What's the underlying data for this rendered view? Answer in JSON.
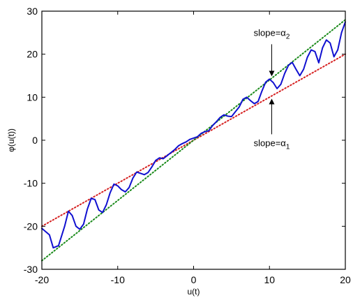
{
  "chart_data": {
    "type": "line",
    "title": "",
    "xlabel": "u(t)",
    "ylabel": "φ(u(t))",
    "xlim": [
      -20,
      20
    ],
    "ylim": [
      -30,
      30
    ],
    "xticks": [
      -20,
      -10,
      0,
      10,
      20
    ],
    "yticks": [
      -30,
      -20,
      -10,
      0,
      10,
      20,
      30
    ],
    "x_tick_labels": [
      "-20",
      "-10",
      "0",
      "10",
      "20"
    ],
    "y_tick_labels": [
      "-30",
      "-20",
      "-10",
      "0",
      "10",
      "20",
      "30"
    ],
    "grid": false,
    "legend": "none",
    "series": [
      {
        "style": "dotted",
        "color": "#d62020",
        "x": [
          -20,
          20
        ],
        "y": [
          -20,
          20
        ]
      },
      {
        "style": "dotted",
        "color": "#1a8a1a",
        "x": [
          -20,
          20
        ],
        "y": [
          -28,
          28
        ]
      },
      {
        "style": "solid",
        "color": "#1010d0",
        "x": [
          -20,
          -19,
          -18.5,
          -17.8,
          -17,
          -16.5,
          -16,
          -15.5,
          -15,
          -14.5,
          -14,
          -13.5,
          -13,
          -12.5,
          -12,
          -11.5,
          -11,
          -10.5,
          -10,
          -9.5,
          -9,
          -8.5,
          -8,
          -7.5,
          -7,
          -6.5,
          -6,
          -5.5,
          -5,
          -4.5,
          -4,
          -3.5,
          -3,
          -2.5,
          -2,
          -1.5,
          -1,
          -0.5,
          0,
          0.5,
          1,
          1.5,
          2,
          2.5,
          3,
          3.5,
          4,
          4.5,
          5,
          5.5,
          6,
          6.5,
          7,
          7.5,
          8,
          8.5,
          9,
          9.5,
          10,
          10.5,
          11,
          11.5,
          12,
          12.5,
          13,
          13.5,
          14,
          14.5,
          15,
          15.5,
          16,
          16.5,
          17,
          17.5,
          18,
          18.5,
          19,
          19.5,
          20
        ],
        "y": [
          -20.5,
          -22,
          -25,
          -24.5,
          -20,
          -16.5,
          -17.5,
          -20,
          -20.7,
          -19.5,
          -16,
          -13.5,
          -13.8,
          -16.2,
          -16.8,
          -15,
          -12.2,
          -10.2,
          -10.6,
          -11.5,
          -12,
          -11,
          -8.8,
          -7.4,
          -7.7,
          -8,
          -7.5,
          -6.2,
          -4.7,
          -4.1,
          -4.3,
          -3.6,
          -2.9,
          -2.2,
          -1.3,
          -0.8,
          -0.4,
          0.2,
          0.5,
          0.8,
          1.6,
          2,
          2.2,
          3.4,
          4.3,
          5.3,
          5.9,
          5.6,
          5.5,
          6.6,
          7.7,
          9.5,
          10,
          9.2,
          8.5,
          9,
          11.4,
          13.5,
          14.2,
          13.4,
          12,
          13,
          15.5,
          17.4,
          18.1,
          16.5,
          15,
          16.5,
          19.3,
          21,
          20.6,
          18,
          21.5,
          23.3,
          22.6,
          19.4,
          21,
          25,
          27.5
        ]
      }
    ],
    "annotations": [
      {
        "text": "slope=α",
        "subscript": "2",
        "x": 10.3,
        "y": 14.2
      },
      {
        "text": "slope=α",
        "subscript": "1",
        "x": 10.3,
        "y": 10.3
      }
    ]
  }
}
